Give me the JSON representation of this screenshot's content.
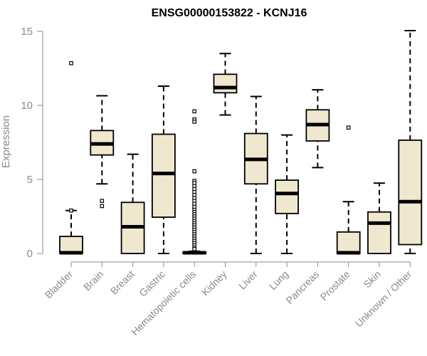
{
  "chart_data": {
    "type": "box",
    "title": "ENSG00000153822 - KCNJ16",
    "ylabel": "Expression",
    "xlabel": "",
    "ylim": [
      0,
      15
    ],
    "yticks": [
      0,
      5,
      10,
      15
    ],
    "grid": false,
    "legend": "none",
    "colors": {
      "box_fill": "#efe8cf",
      "box_stroke": "#000000",
      "axis": "#8a8a8a"
    },
    "categories": [
      "Bladder",
      "Brain",
      "Breast",
      "Gastric",
      "Hematopoietic cells",
      "Kidney",
      "Liver",
      "Lung",
      "Pancreas",
      "Prostate",
      "Skin",
      "Unknown / Other"
    ],
    "boxes": [
      {
        "category": "Bladder",
        "whisker_low": 0,
        "q1": 0,
        "median": 0.05,
        "q3": 1.15,
        "whisker_high": 2.9,
        "outliers": [
          12.85,
          2.9
        ]
      },
      {
        "category": "Brain",
        "whisker_low": 4.7,
        "q1": 6.65,
        "median": 7.4,
        "q3": 8.3,
        "whisker_high": 10.65,
        "outliers": [
          3.55,
          3.2
        ]
      },
      {
        "category": "Breast",
        "whisker_low": 0,
        "q1": 0,
        "median": 1.8,
        "q3": 3.45,
        "whisker_high": 6.7,
        "outliers": []
      },
      {
        "category": "Gastric",
        "whisker_low": 0,
        "q1": 2.45,
        "median": 5.4,
        "q3": 8.05,
        "whisker_high": 11.3,
        "outliers": []
      },
      {
        "category": "Hematopoietic cells",
        "whisker_low": 0,
        "q1": 0,
        "median": 0.05,
        "q3": 0.1,
        "whisker_high": 0.15,
        "outliers": [
          9.6,
          9.05,
          8.9,
          5.55,
          4.9,
          4.75,
          4.55,
          4.35,
          4.15,
          3.95,
          3.75,
          3.55,
          3.35,
          3.15,
          2.95,
          2.8,
          2.65,
          2.5,
          2.35,
          2.2,
          2.05,
          1.9,
          1.75,
          1.6,
          1.45,
          1.3,
          1.15,
          1.0,
          0.85,
          0.7,
          0.55,
          0.4,
          0.3
        ]
      },
      {
        "category": "Kidney",
        "whisker_low": 9.35,
        "q1": 10.85,
        "median": 11.2,
        "q3": 12.1,
        "whisker_high": 13.5,
        "outliers": []
      },
      {
        "category": "Liver",
        "whisker_low": 0,
        "q1": 4.7,
        "median": 6.35,
        "q3": 8.1,
        "whisker_high": 10.6,
        "outliers": []
      },
      {
        "category": "Lung",
        "whisker_low": 0,
        "q1": 2.7,
        "median": 4.05,
        "q3": 4.95,
        "whisker_high": 8.0,
        "outliers": []
      },
      {
        "category": "Pancreas",
        "whisker_low": 5.8,
        "q1": 7.6,
        "median": 8.7,
        "q3": 9.7,
        "whisker_high": 11.05,
        "outliers": []
      },
      {
        "category": "Prostate",
        "whisker_low": 0,
        "q1": 0,
        "median": 0.05,
        "q3": 1.45,
        "whisker_high": 3.5,
        "outliers": [
          8.5
        ]
      },
      {
        "category": "Skin",
        "whisker_low": 0,
        "q1": 0,
        "median": 2.05,
        "q3": 2.8,
        "whisker_high": 4.75,
        "outliers": []
      },
      {
        "category": "Unknown / Other",
        "whisker_low": 0,
        "q1": 0.6,
        "median": 3.5,
        "q3": 7.65,
        "whisker_high": 15.05,
        "outliers": []
      }
    ]
  }
}
